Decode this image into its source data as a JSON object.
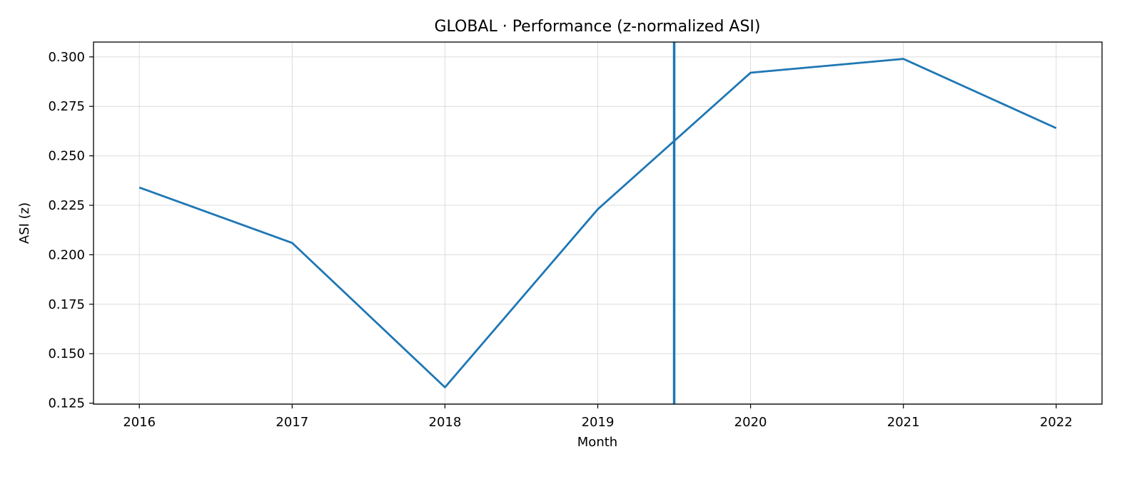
{
  "chart_data": {
    "type": "line",
    "title": "GLOBAL · Performance (z-normalized ASI)",
    "xlabel": "Month",
    "ylabel": "ASI (z)",
    "x": [
      2016,
      2017,
      2018,
      2019,
      2020,
      2021,
      2022
    ],
    "xlim": [
      2015.7,
      2022.3
    ],
    "ylim": [
      0.1245,
      0.3075
    ],
    "xticks": [
      "2016",
      "2017",
      "2018",
      "2019",
      "2020",
      "2021",
      "2022"
    ],
    "yticks": [
      0.125,
      0.15,
      0.175,
      0.2,
      0.225,
      0.25,
      0.275,
      0.3
    ],
    "ytick_labels": [
      "0.125",
      "0.150",
      "0.175",
      "0.200",
      "0.225",
      "0.250",
      "0.275",
      "0.300"
    ],
    "series": [
      {
        "values": [
          0.234,
          0.206,
          0.133,
          0.223,
          0.292,
          0.299,
          0.264
        ],
        "color": "#1f77b4"
      }
    ],
    "vline": {
      "x": 2019.5,
      "color": "#1f77b4"
    },
    "grid": true,
    "legend": "none"
  }
}
